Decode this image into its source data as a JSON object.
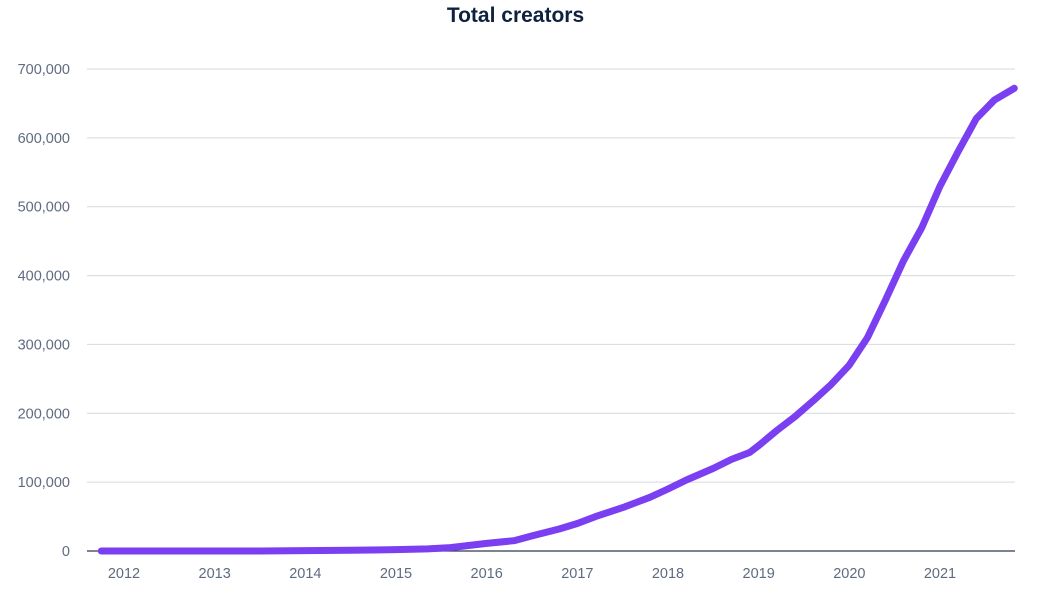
{
  "chart_data": {
    "type": "line",
    "title": "Total creators",
    "xlabel": "",
    "ylabel": "",
    "x_ticks": [
      "2012",
      "2013",
      "2014",
      "2015",
      "2016",
      "2017",
      "2018",
      "2019",
      "2020",
      "2021"
    ],
    "y_ticks": [
      "700,000",
      "600,000",
      "500,000",
      "400,000",
      "300,000",
      "200,000",
      "100,000",
      "0"
    ],
    "ylim": [
      0,
      700000
    ],
    "xlim": [
      2011.75,
      2021.82
    ],
    "grid": true,
    "line_color": "#7b3ff2",
    "series": [
      {
        "x": [
          2011.75,
          2012.5,
          2013.5,
          2014.5,
          2015.0,
          2015.35,
          2015.6,
          2015.8,
          2016.0,
          2016.3,
          2016.5,
          2016.8,
          2017.0,
          2017.2,
          2017.5,
          2017.8,
          2018.0,
          2018.2,
          2018.5,
          2018.7,
          2018.9,
          2019.0,
          2019.2,
          2019.4,
          2019.6,
          2019.8,
          2020.0,
          2020.2,
          2020.4,
          2020.6,
          2020.8,
          2021.0,
          2021.2,
          2021.4,
          2021.6,
          2021.82
        ],
        "y": [
          0,
          0,
          0,
          1000,
          2000,
          3000,
          5000,
          8000,
          11000,
          15000,
          22000,
          32000,
          40000,
          50000,
          63000,
          78000,
          90000,
          103000,
          120000,
          133000,
          143000,
          153000,
          175000,
          195000,
          218000,
          242000,
          270000,
          310000,
          365000,
          422000,
          470000,
          530000,
          580000,
          628000,
          655000,
          672000
        ]
      }
    ]
  }
}
